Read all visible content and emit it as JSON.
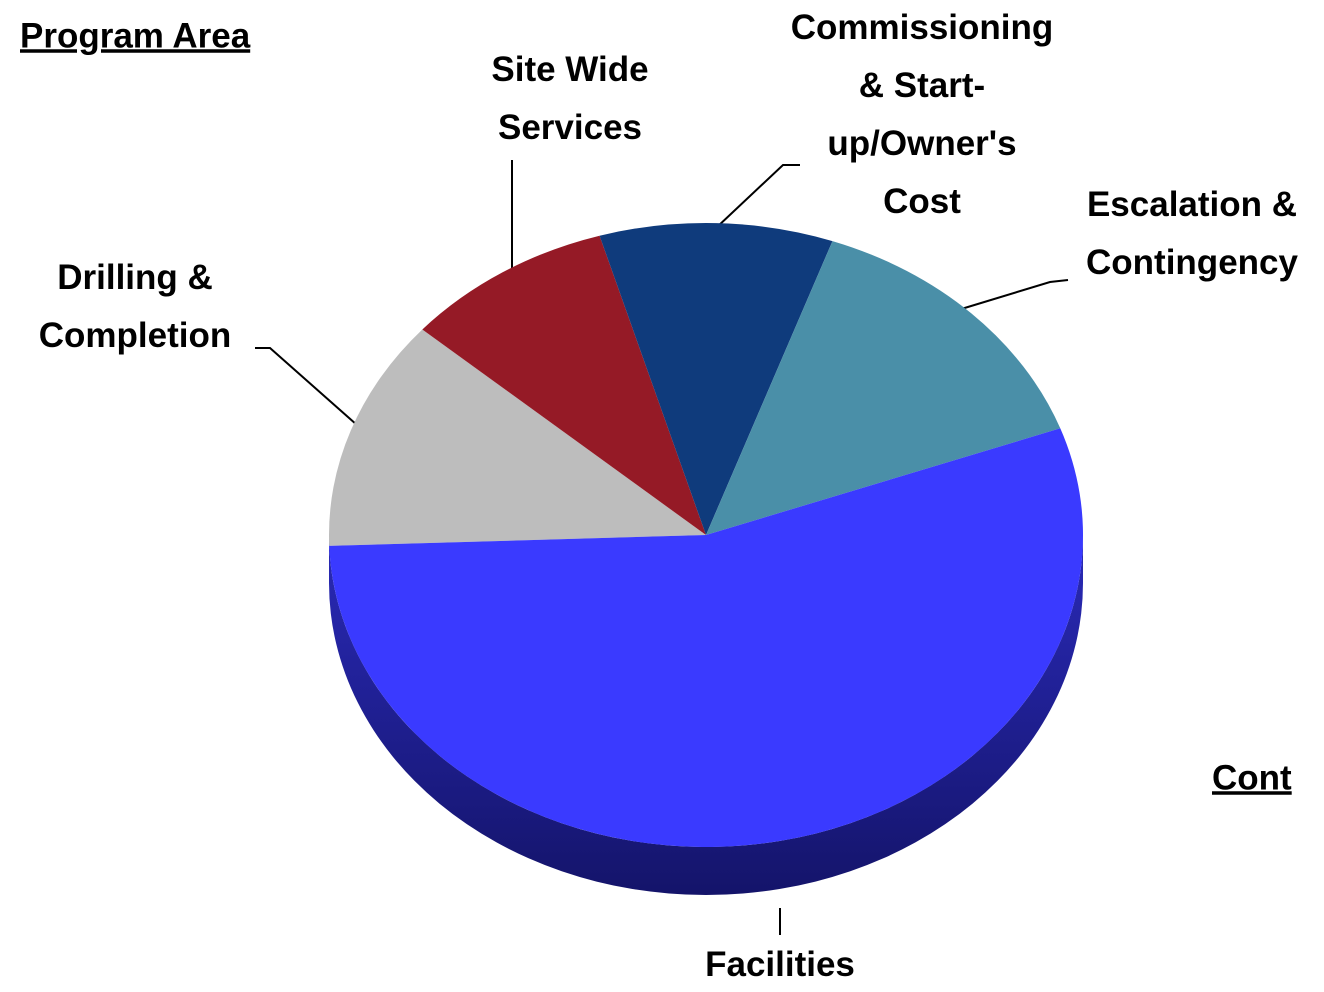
{
  "chart_data": {
    "type": "pie",
    "title": "Program Area",
    "annotation": "Cont",
    "categories": [
      [
        "Drilling &",
        "Completion"
      ],
      [
        "Site Wide",
        "Services"
      ],
      [
        "Commissioning",
        "& Start-",
        "up/Owner's",
        "Cost"
      ],
      [
        "Escalation &",
        "Contingency"
      ],
      [
        "Facilities"
      ]
    ],
    "values": [
      12,
      9,
      10,
      14,
      55
    ],
    "colors": [
      "#bdbdbd",
      "#951a26",
      "#0f3b7c",
      "#4a8fa8",
      "#3a3aff"
    ]
  }
}
